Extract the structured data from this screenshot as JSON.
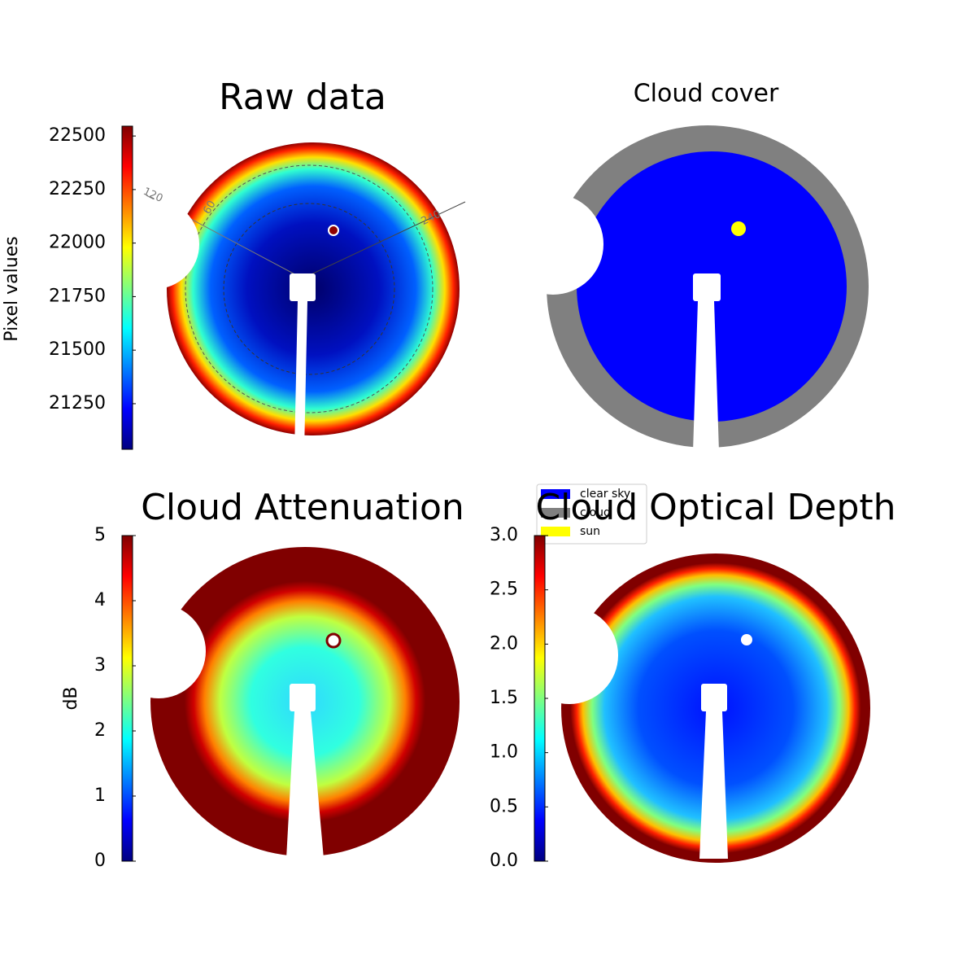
{
  "panels": [
    {
      "title": "Raw data",
      "colorbar": {
        "label": "Pixel values",
        "lim": [
          21037,
          22546
        ],
        "ticks": [
          21250,
          21500,
          21750,
          22000,
          22250,
          22500
        ]
      },
      "annotations": [
        "120",
        "60",
        "240"
      ]
    },
    {
      "title": "Cloud cover",
      "legend": [
        {
          "name": "clear sky",
          "color": "#0000ff"
        },
        {
          "name": "cloud",
          "color": "#808080"
        },
        {
          "name": "sun",
          "color": "#ffff00"
        }
      ]
    },
    {
      "title": "Cloud Attenuation",
      "colorbar": {
        "label": "dB",
        "lim": [
          0,
          5
        ],
        "ticks": [
          0,
          1,
          2,
          3,
          4,
          5
        ]
      }
    },
    {
      "title": "Cloud Optical Depth",
      "colorbar": {
        "lim": [
          0,
          3
        ],
        "ticks": [
          {
            "value": 0,
            "label": "0.0"
          },
          0.5,
          {
            "value": 1,
            "label": "1.0"
          },
          1.5,
          {
            "value": 2,
            "label": "2.0"
          },
          2.5,
          {
            "value": 3,
            "label": "3.0"
          }
        ]
      }
    }
  ]
}
